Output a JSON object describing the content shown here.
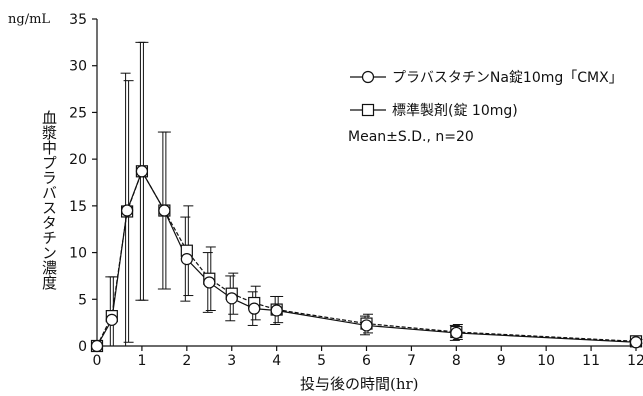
{
  "chart_data": {
    "type": "line",
    "xlabel": "投与後の時間(hr)",
    "ylabel": "血漿中プラバスタチン濃度",
    "yunit": "ng/mL",
    "xlim": [
      0,
      12
    ],
    "ylim": [
      0,
      35
    ],
    "xticks": [
      0,
      1,
      2,
      3,
      4,
      5,
      6,
      7,
      8,
      9,
      10,
      11,
      12
    ],
    "yticks": [
      0,
      5,
      10,
      15,
      20,
      25,
      30,
      35
    ],
    "grid": false,
    "legend_position": "top-right",
    "legend_note": "Mean±S.D., n=20",
    "series": [
      {
        "name": "プラバスタチンNa錠10mg「CMX」",
        "marker": "circle",
        "line": "solid",
        "x": [
          0,
          0.33,
          0.67,
          1,
          1.5,
          2,
          2.5,
          3,
          3.5,
          4,
          6,
          8,
          12
        ],
        "y": [
          0,
          2.8,
          14.5,
          18.7,
          14.5,
          9.3,
          6.8,
          5.1,
          4.0,
          3.8,
          2.2,
          1.4,
          0.4
        ],
        "sd": [
          0,
          4.6,
          14.7,
          13.8,
          8.4,
          4.5,
          3.2,
          2.4,
          1.8,
          1.5,
          1.0,
          0.8,
          0.2
        ]
      },
      {
        "name": "標準製剤(錠 10mg)",
        "marker": "square",
        "line": "dashed",
        "x": [
          0,
          0.33,
          0.67,
          1,
          1.5,
          2,
          2.5,
          3,
          3.5,
          4,
          6,
          8,
          12
        ],
        "y": [
          0,
          3.2,
          14.4,
          18.7,
          14.5,
          10.2,
          7.2,
          5.6,
          4.6,
          3.9,
          2.4,
          1.5,
          0.5
        ],
        "sd": [
          0,
          4.2,
          14.0,
          13.8,
          8.4,
          4.8,
          3.4,
          2.2,
          1.8,
          1.4,
          1.0,
          0.8,
          0.2
        ]
      }
    ]
  }
}
